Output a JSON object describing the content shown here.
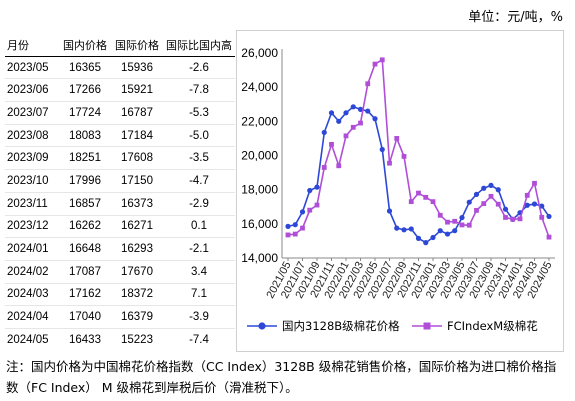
{
  "unit_label": "单位：元/吨，%",
  "table": {
    "headers": [
      "月份",
      "国内价格",
      "国际价格",
      "国际比国内高"
    ],
    "rows": [
      [
        "2023/05",
        "16365",
        "15936",
        "-2.6"
      ],
      [
        "2023/06",
        "17266",
        "15921",
        "-7.8"
      ],
      [
        "2023/07",
        "17724",
        "16787",
        "-5.3"
      ],
      [
        "2023/08",
        "18083",
        "17184",
        "-5.0"
      ],
      [
        "2023/09",
        "18251",
        "17608",
        "-3.5"
      ],
      [
        "2023/10",
        "17996",
        "17150",
        "-4.7"
      ],
      [
        "2023/11",
        "16857",
        "16373",
        "-2.9"
      ],
      [
        "2023/12",
        "16262",
        "16271",
        "0.1"
      ],
      [
        "2024/01",
        "16648",
        "16293",
        "-2.1"
      ],
      [
        "2024/02",
        "17087",
        "17670",
        "3.4"
      ],
      [
        "2024/03",
        "17162",
        "18372",
        "7.1"
      ],
      [
        "2024/04",
        "17040",
        "16379",
        "-3.9"
      ],
      [
        "2024/05",
        "16433",
        "15223",
        "-7.4"
      ]
    ]
  },
  "chart_data": {
    "type": "line",
    "x": [
      "2021/05",
      "2021/06",
      "2021/07",
      "2021/08",
      "2021/09",
      "2021/10",
      "2021/11",
      "2021/12",
      "2022/01",
      "2022/02",
      "2022/03",
      "2022/04",
      "2022/05",
      "2022/06",
      "2022/07",
      "2022/08",
      "2022/09",
      "2022/10",
      "2022/11",
      "2022/12",
      "2023/01",
      "2023/02",
      "2023/03",
      "2023/04",
      "2023/05",
      "2023/06",
      "2023/07",
      "2023/08",
      "2023/09",
      "2023/10",
      "2023/11",
      "2023/12",
      "2024/01",
      "2024/02",
      "2024/03",
      "2024/04",
      "2024/05"
    ],
    "x_tick_labels": [
      "2021/05",
      "2021/07",
      "2021/09",
      "2021/11",
      "2022/01",
      "2022/03",
      "2022/05",
      "2022/07",
      "2022/09",
      "2022/11",
      "2023/01",
      "2023/03",
      "2023/05",
      "2023/07",
      "2023/09",
      "2023/11",
      "2024/01",
      "2024/03",
      "2024/05"
    ],
    "series": [
      {
        "name": "国内3128B级棉花价格",
        "color": "#2d48d6",
        "marker": "circle",
        "values": [
          15850,
          15950,
          16700,
          17950,
          18150,
          21350,
          22500,
          22000,
          22500,
          22850,
          22700,
          22600,
          22150,
          20350,
          16750,
          15750,
          15650,
          15700,
          15150,
          14900,
          15200,
          15600,
          15400,
          15600,
          16365,
          17266,
          17724,
          18083,
          18251,
          17996,
          16857,
          16262,
          16648,
          17087,
          17162,
          17040,
          16433
        ]
      },
      {
        "name": "FCIndexM级棉花",
        "color": "#b04ed8",
        "marker": "square",
        "values": [
          15350,
          15400,
          15750,
          16800,
          17100,
          19300,
          20650,
          19400,
          21150,
          21650,
          21900,
          24200,
          25350,
          25600,
          19550,
          21000,
          19950,
          17300,
          17800,
          17550,
          17300,
          16500,
          16100,
          16150,
          15936,
          15921,
          16787,
          17184,
          17608,
          17150,
          16373,
          16271,
          16293,
          17670,
          18372,
          16379,
          15223
        ]
      }
    ],
    "ylim": [
      14000,
      26000
    ],
    "yticks": [
      "14,000",
      "16,000",
      "18,000",
      "20,000",
      "22,000",
      "24,000",
      "26,000"
    ],
    "grid": false,
    "legend": "bottom"
  },
  "note": "注：国内价格为中国棉花价格指数（CC Index）3128B 级棉花销售价格，国际价格为进口棉价格指数（FC Index） M 级棉花到岸税后价（滑准税下）。"
}
